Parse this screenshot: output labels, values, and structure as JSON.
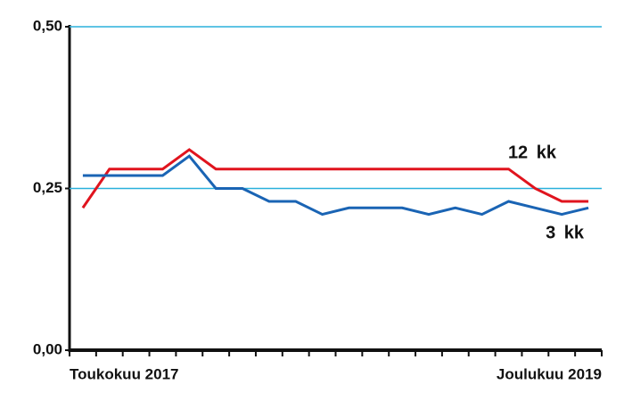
{
  "chart_data": {
    "type": "line",
    "categories": [
      "Toukokuu 2017",
      null,
      null,
      null,
      null,
      null,
      null,
      null,
      null,
      null,
      null,
      null,
      null,
      null,
      null,
      null,
      null,
      null,
      null,
      "Joulukuu 2019"
    ],
    "series": [
      {
        "name": "12 kk",
        "color": "#e0141e",
        "values": [
          0.22,
          0.28,
          0.28,
          0.28,
          0.31,
          0.28,
          0.28,
          0.28,
          0.28,
          0.28,
          0.28,
          0.28,
          0.28,
          0.28,
          0.28,
          0.28,
          0.28,
          0.25,
          0.23,
          0.23
        ]
      },
      {
        "name": "3 kk",
        "color": "#1a64b4",
        "values": [
          0.27,
          0.27,
          0.27,
          0.27,
          0.3,
          0.25,
          0.25,
          0.23,
          0.23,
          0.21,
          0.22,
          0.22,
          0.22,
          0.21,
          0.22,
          0.21,
          0.23,
          0.22,
          0.21,
          0.22
        ]
      }
    ],
    "ylim": [
      0,
      0.5
    ],
    "yticks": [
      {
        "value": 0,
        "label": "0,00"
      },
      {
        "value": 0.25,
        "label": "0,25"
      },
      {
        "value": 0.5,
        "label": "0,50"
      }
    ],
    "grid": true,
    "grid_color": "#2ab0dc"
  }
}
